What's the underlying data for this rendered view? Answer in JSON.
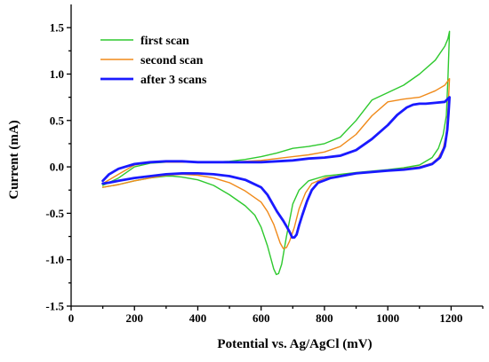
{
  "chart_data": {
    "type": "line",
    "title": "",
    "xlabel": "Potential vs. Ag/AgCl (mV)",
    "ylabel": "Current (mA)",
    "xlim": [
      0,
      1300
    ],
    "ylim": [
      -1.5,
      1.75
    ],
    "xticks": [
      0,
      200,
      400,
      600,
      800,
      1000,
      1200
    ],
    "yticks": [
      -1.5,
      -1.0,
      -0.5,
      0.0,
      0.5,
      1.0,
      1.5
    ],
    "xtick_labels": [
      "0",
      "200",
      "400",
      "600",
      "800",
      "1000",
      "1200"
    ],
    "ytick_labels": [
      "-1.5",
      "-1.0",
      "-0.5",
      "0.0",
      "0.5",
      "1.0",
      "1.5"
    ],
    "grid": false,
    "legend_position": "top-left",
    "series": [
      {
        "name": "first scan",
        "color": "#2ec92e",
        "line_width": 1.4,
        "x": [
          100,
          150,
          200,
          250,
          300,
          350,
          400,
          450,
          500,
          550,
          600,
          650,
          700,
          750,
          800,
          850,
          900,
          950,
          1000,
          1050,
          1100,
          1150,
          1180,
          1190,
          1195,
          1190,
          1185,
          1175,
          1160,
          1140,
          1100,
          1050,
          1000,
          900,
          800,
          750,
          720,
          700,
          680,
          665,
          655,
          648,
          640,
          620,
          600,
          580,
          550,
          500,
          450,
          400,
          350,
          320,
          300,
          250,
          200,
          150,
          100
        ],
        "y": [
          -0.2,
          -0.12,
          0.0,
          0.04,
          0.05,
          0.05,
          0.05,
          0.05,
          0.06,
          0.08,
          0.11,
          0.15,
          0.2,
          0.22,
          0.25,
          0.32,
          0.5,
          0.72,
          0.8,
          0.88,
          1.0,
          1.15,
          1.3,
          1.38,
          1.46,
          0.95,
          0.55,
          0.35,
          0.2,
          0.1,
          0.02,
          -0.01,
          -0.03,
          -0.06,
          -0.1,
          -0.15,
          -0.25,
          -0.4,
          -0.75,
          -1.05,
          -1.15,
          -1.16,
          -1.1,
          -0.85,
          -0.65,
          -0.52,
          -0.42,
          -0.3,
          -0.2,
          -0.14,
          -0.11,
          -0.1,
          -0.1,
          -0.12,
          -0.15,
          -0.19,
          -0.22
        ]
      },
      {
        "name": "second scan",
        "color": "#f08a1a",
        "line_width": 1.4,
        "x": [
          100,
          150,
          200,
          250,
          300,
          350,
          400,
          450,
          500,
          550,
          600,
          650,
          700,
          750,
          800,
          850,
          900,
          950,
          1000,
          1050,
          1100,
          1150,
          1180,
          1195,
          1190,
          1185,
          1175,
          1160,
          1140,
          1100,
          1050,
          1000,
          900,
          800,
          760,
          740,
          720,
          705,
          690,
          680,
          670,
          660,
          640,
          620,
          600,
          550,
          500,
          450,
          400,
          350,
          300,
          250,
          200,
          150,
          100
        ],
        "y": [
          -0.18,
          -0.08,
          0.02,
          0.05,
          0.05,
          0.05,
          0.05,
          0.05,
          0.05,
          0.06,
          0.07,
          0.09,
          0.11,
          0.13,
          0.16,
          0.22,
          0.35,
          0.55,
          0.7,
          0.73,
          0.75,
          0.82,
          0.88,
          0.95,
          0.6,
          0.35,
          0.2,
          0.1,
          0.04,
          0.0,
          -0.02,
          -0.04,
          -0.07,
          -0.12,
          -0.18,
          -0.28,
          -0.45,
          -0.65,
          -0.8,
          -0.87,
          -0.88,
          -0.82,
          -0.62,
          -0.48,
          -0.38,
          -0.26,
          -0.17,
          -0.12,
          -0.09,
          -0.08,
          -0.09,
          -0.12,
          -0.15,
          -0.19,
          -0.22
        ]
      },
      {
        "name": "after 3 scans",
        "color": "#1a1aff",
        "line_width": 2.8,
        "x": [
          100,
          120,
          150,
          200,
          250,
          300,
          350,
          400,
          450,
          500,
          550,
          600,
          650,
          700,
          750,
          800,
          850,
          900,
          950,
          1000,
          1030,
          1060,
          1080,
          1100,
          1120,
          1150,
          1180,
          1195,
          1192,
          1188,
          1180,
          1165,
          1140,
          1100,
          1050,
          1000,
          900,
          820,
          780,
          760,
          745,
          730,
          720,
          712,
          705,
          698,
          690,
          680,
          670,
          650,
          620,
          600,
          550,
          500,
          450,
          400,
          350,
          300,
          250,
          200,
          150,
          120,
          100
        ],
        "y": [
          -0.15,
          -0.08,
          -0.02,
          0.03,
          0.05,
          0.06,
          0.06,
          0.05,
          0.05,
          0.05,
          0.05,
          0.05,
          0.06,
          0.07,
          0.09,
          0.1,
          0.12,
          0.18,
          0.3,
          0.45,
          0.56,
          0.64,
          0.67,
          0.68,
          0.68,
          0.69,
          0.7,
          0.75,
          0.58,
          0.4,
          0.22,
          0.1,
          0.03,
          -0.01,
          -0.03,
          -0.04,
          -0.07,
          -0.12,
          -0.17,
          -0.25,
          -0.37,
          -0.52,
          -0.63,
          -0.73,
          -0.76,
          -0.76,
          -0.7,
          -0.64,
          -0.58,
          -0.48,
          -0.3,
          -0.22,
          -0.14,
          -0.1,
          -0.08,
          -0.07,
          -0.07,
          -0.08,
          -0.1,
          -0.12,
          -0.15,
          -0.17,
          -0.18
        ]
      }
    ]
  }
}
